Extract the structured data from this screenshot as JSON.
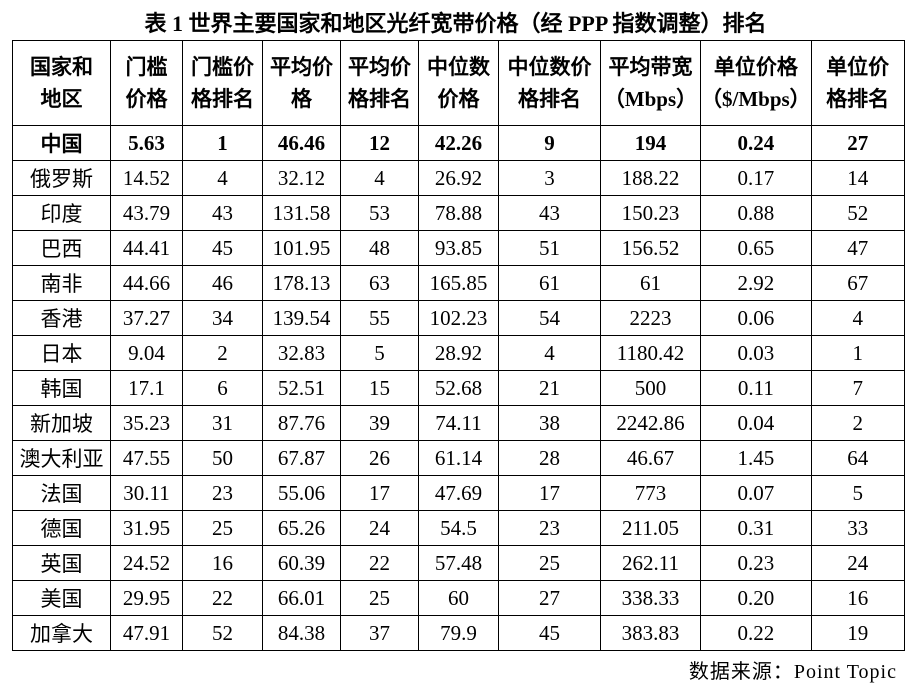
{
  "title": "表 1  世界主要国家和地区光纤宽带价格（经 PPP 指数调整）排名",
  "table": {
    "header": [
      [
        "国家和",
        "地区"
      ],
      [
        "门槛",
        "价格"
      ],
      [
        "门槛价",
        "格排名"
      ],
      [
        "平均价",
        "格"
      ],
      [
        "平均价",
        "格排名"
      ],
      [
        "中位数",
        "价格"
      ],
      [
        "中位数价",
        "格排名"
      ],
      [
        "平均带宽",
        "（Mbps）"
      ],
      [
        "单位价格",
        "（$/Mbps）"
      ],
      [
        "单位价",
        "格排名"
      ]
    ],
    "rows": [
      [
        "中国",
        "5.63",
        "1",
        "46.46",
        "12",
        "42.26",
        "9",
        "194",
        "0.24",
        "27"
      ],
      [
        "俄罗斯",
        "14.52",
        "4",
        "32.12",
        "4",
        "26.92",
        "3",
        "188.22",
        "0.17",
        "14"
      ],
      [
        "印度",
        "43.79",
        "43",
        "131.58",
        "53",
        "78.88",
        "43",
        "150.23",
        "0.88",
        "52"
      ],
      [
        "巴西",
        "44.41",
        "45",
        "101.95",
        "48",
        "93.85",
        "51",
        "156.52",
        "0.65",
        "47"
      ],
      [
        "南非",
        "44.66",
        "46",
        "178.13",
        "63",
        "165.85",
        "61",
        "61",
        "2.92",
        "67"
      ],
      [
        "香港",
        "37.27",
        "34",
        "139.54",
        "55",
        "102.23",
        "54",
        "2223",
        "0.06",
        "4"
      ],
      [
        "日本",
        "9.04",
        "2",
        "32.83",
        "5",
        "28.92",
        "4",
        "1180.42",
        "0.03",
        "1"
      ],
      [
        "韩国",
        "17.1",
        "6",
        "52.51",
        "15",
        "52.68",
        "21",
        "500",
        "0.11",
        "7"
      ],
      [
        "新加坡",
        "35.23",
        "31",
        "87.76",
        "39",
        "74.11",
        "38",
        "2242.86",
        "0.04",
        "2"
      ],
      [
        "澳大利亚",
        "47.55",
        "50",
        "67.87",
        "26",
        "61.14",
        "28",
        "46.67",
        "1.45",
        "64"
      ],
      [
        "法国",
        "30.11",
        "23",
        "55.06",
        "17",
        "47.69",
        "17",
        "773",
        "0.07",
        "5"
      ],
      [
        "德国",
        "31.95",
        "25",
        "65.26",
        "24",
        "54.5",
        "23",
        "211.05",
        "0.31",
        "33"
      ],
      [
        "英国",
        "24.52",
        "16",
        "60.39",
        "22",
        "57.48",
        "25",
        "262.11",
        "0.23",
        "24"
      ],
      [
        "美国",
        "29.95",
        "22",
        "66.01",
        "25",
        "60",
        "27",
        "338.33",
        "0.20",
        "16"
      ],
      [
        "加拿大",
        "47.91",
        "52",
        "84.38",
        "37",
        "79.9",
        "45",
        "383.83",
        "0.22",
        "19"
      ]
    ]
  },
  "source": "数据来源：Point Topic"
}
